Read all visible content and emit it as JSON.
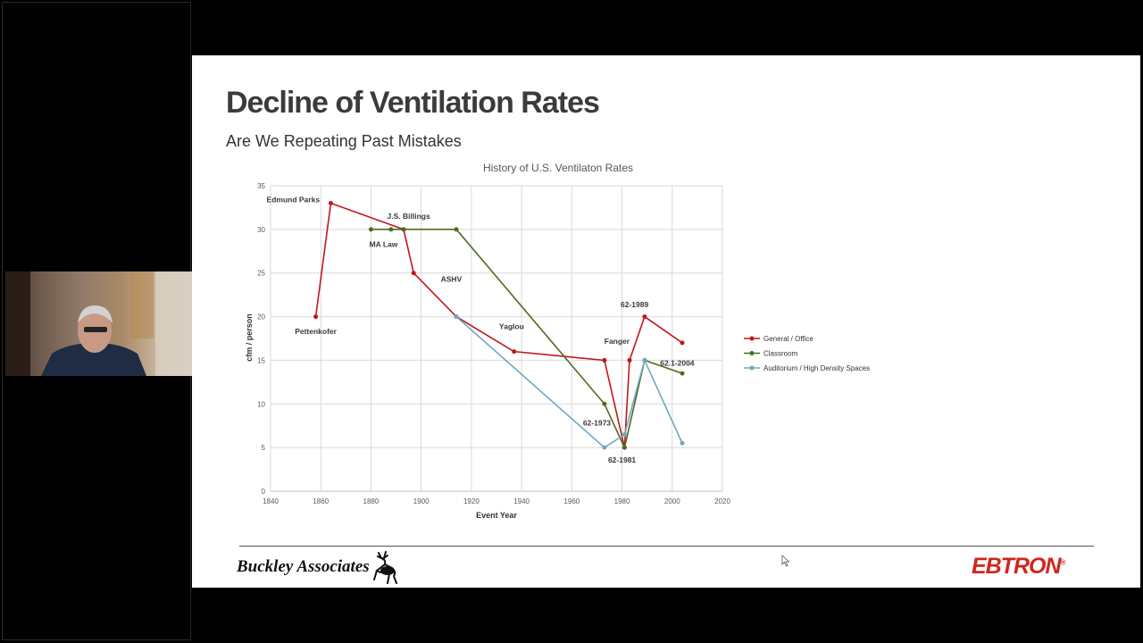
{
  "slide": {
    "title": "Decline of Ventilation Rates",
    "subtitle": "Are We Repeating Past Mistakes"
  },
  "footer": {
    "left_logo": "Buckley Associates",
    "right_logo": "EBTRON",
    "right_logo_mark": "®"
  },
  "colors": {
    "general": "#c0171c",
    "classroom": "#4e6b1f",
    "auditorium": "#6fa7c2"
  },
  "chart_data": {
    "type": "line",
    "title": "History of U.S. Ventilaton Rates",
    "xlabel": "Event Year",
    "ylabel": "cfm / person",
    "xlim": [
      1840,
      2020
    ],
    "ylim": [
      0,
      35
    ],
    "xticks": [
      1840,
      1860,
      1880,
      1900,
      1920,
      1940,
      1960,
      1980,
      2000,
      2020
    ],
    "yticks": [
      0,
      5,
      10,
      15,
      20,
      25,
      30,
      35
    ],
    "grid": true,
    "legend_position": "right",
    "series": [
      {
        "name": "General / Office",
        "color": "#c0171c",
        "x": [
          1858,
          1864,
          1893,
          1897,
          1914,
          1937,
          1973,
          1981,
          1983,
          1989,
          2004
        ],
        "y": [
          20,
          33,
          30,
          25,
          20,
          16,
          15,
          5,
          15,
          20,
          17
        ]
      },
      {
        "name": "Classroom",
        "color": "#4e6b1f",
        "x": [
          1880,
          1888,
          1893,
          1914,
          1973,
          1981,
          1989,
          2004
        ],
        "y": [
          30,
          30,
          30,
          30,
          10,
          5,
          15,
          13.5
        ]
      },
      {
        "name": "Auditorium / High Density Spaces",
        "color": "#6fa7c2",
        "x": [
          1914,
          1973,
          1981,
          1989,
          2004
        ],
        "y": [
          20,
          5,
          6.5,
          15,
          5.5
        ]
      }
    ],
    "annotations": [
      {
        "text": "Edmund Parks",
        "x": 1849,
        "y": 33.1
      },
      {
        "text": "J.S. Billings",
        "x": 1895,
        "y": 31.2
      },
      {
        "text": "MA Law",
        "x": 1885,
        "y": 28.0
      },
      {
        "text": "ASHV",
        "x": 1912,
        "y": 24.0
      },
      {
        "text": "Pettenkofer",
        "x": 1858,
        "y": 18.0
      },
      {
        "text": "Yaglou",
        "x": 1936,
        "y": 18.6
      },
      {
        "text": "62-1989",
        "x": 1985,
        "y": 21.1
      },
      {
        "text": "Fanger",
        "x": 1978,
        "y": 16.9
      },
      {
        "text": "62.1-2004",
        "x": 2002,
        "y": 14.4
      },
      {
        "text": "62-1973",
        "x": 1970,
        "y": 7.5
      },
      {
        "text": "62-1981",
        "x": 1980,
        "y": 3.3
      }
    ]
  }
}
